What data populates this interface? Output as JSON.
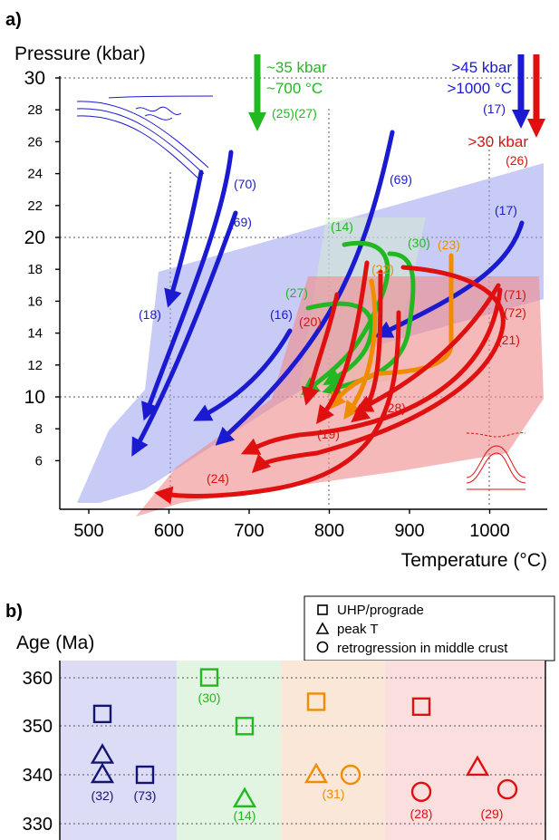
{
  "panel_a": {
    "label": "a)",
    "ylabel": "Pressure (kbar)",
    "xlabel": "Temperature (°C)",
    "x_ticks": [
      "500",
      "600",
      "700",
      "800",
      "900",
      "1000"
    ],
    "y_ticks": [
      "30",
      "28",
      "26",
      "24",
      "22",
      "20",
      "18",
      "16",
      "14",
      "12",
      "10",
      "8",
      "6"
    ],
    "annotations": {
      "green_line1": "~35 kbar",
      "green_line2": "~700 °C",
      "green_refs": "(25)(27)",
      "blue_line1": ">45 kbar",
      "blue_line2": ">1000 °C",
      "blue_ref": "(17)",
      "red_line1": ">30 kbar",
      "red_ref": "(26)"
    },
    "path_labels": [
      {
        "text": "(70)",
        "color": "#1a1ad0"
      },
      {
        "text": "(69)",
        "color": "#1a1ad0"
      },
      {
        "text": "(69)",
        "color": "#1a1ad0"
      },
      {
        "text": "(17)",
        "color": "#1a1ad0"
      },
      {
        "text": "(18)",
        "color": "#1a1ad0"
      },
      {
        "text": "(16)",
        "color": "#1a1ad0"
      },
      {
        "text": "(14)",
        "color": "#22b822"
      },
      {
        "text": "(30)",
        "color": "#22b822"
      },
      {
        "text": "(27)",
        "color": "#22b822"
      },
      {
        "text": "(23)",
        "color": "#f08c00"
      },
      {
        "text": "(22)",
        "color": "#f08c00"
      },
      {
        "text": "(20)",
        "color": "#e01010"
      },
      {
        "text": "(71)",
        "color": "#e01010"
      },
      {
        "text": "(72)",
        "color": "#e01010"
      },
      {
        "text": "(21)",
        "color": "#e01010"
      },
      {
        "text": "(28)",
        "color": "#e01010"
      },
      {
        "text": "(19)",
        "color": "#e01010"
      },
      {
        "text": "(24)",
        "color": "#e01010"
      }
    ]
  },
  "panel_b": {
    "label": "b)",
    "ylabel": "Age (Ma)",
    "legend": [
      {
        "shape": "square",
        "label": "UHP/prograde"
      },
      {
        "shape": "triangle",
        "label": "peak T"
      },
      {
        "shape": "circle",
        "label": "retrogression in middle crust"
      }
    ],
    "y_ticks": [
      "360",
      "350",
      "340",
      "330"
    ],
    "ref_labels": [
      "(32)",
      "(73)",
      "(30)",
      "(14)",
      "(31)",
      "(28)",
      "(29)"
    ]
  },
  "colors": {
    "blue": "#1a1ad0",
    "navy": "#141473",
    "green": "#22b822",
    "orange": "#f08c00",
    "red": "#e01010",
    "blue_band": "#9aa0ec",
    "red_band": "#f08a8a",
    "green_band": "#e2f4e2",
    "orange_band": "#fbe7d7",
    "red_bg_band": "#fbdede",
    "blue_bg_band": "#dcdcf6"
  },
  "chart_data": [
    {
      "type": "line",
      "title": "",
      "xlabel": "Temperature (°C)",
      "ylabel": "Pressure (kbar)",
      "xlim": [
        460,
        1080
      ],
      "ylim": [
        3,
        31
      ],
      "grid": "dashed at 600, 800, 1000 °C and 10, 20, 30 kbar",
      "series": [
        {
          "name": "(70)",
          "color": "blue",
          "x": [
            680,
            640,
            600
          ],
          "y": [
            25.5,
            18,
            10
          ]
        },
        {
          "name": "(70)",
          "color": "blue",
          "x": [
            660,
            625,
            590
          ],
          "y": [
            25,
            19,
            13
          ]
        },
        {
          "name": "(69)",
          "color": "blue",
          "x": [
            680,
            630,
            550
          ],
          "y": [
            20,
            12,
            6.5
          ]
        },
        {
          "name": "(69)",
          "color": "blue",
          "x": [
            875,
            820,
            680
          ],
          "y": [
            26.5,
            14,
            5.5
          ]
        },
        {
          "name": "(18)",
          "color": "blue",
          "x": [
            630,
            615,
            600
          ],
          "y": [
            23.5,
            19,
            15
          ]
        },
        {
          "name": "(16)",
          "color": "blue",
          "x": [
            740,
            710,
            640
          ],
          "y": [
            15.5,
            11,
            8.5
          ]
        },
        {
          "name": "(17)",
          "color": "blue",
          "x": [
            1040,
            980,
            880
          ],
          "y": [
            21,
            16,
            14
          ]
        },
        {
          "name": "(14)",
          "color": "green",
          "x": [
            820,
            810,
            780
          ],
          "y": [
            19.5,
            12,
            9.5
          ]
        },
        {
          "name": "(30)",
          "color": "green",
          "x": [
            870,
            860,
            800
          ],
          "y": [
            19,
            13,
            10
          ]
        },
        {
          "name": "(27)",
          "color": "green",
          "x": [
            775,
            820,
            780
          ],
          "y": [
            15.5,
            14,
            11
          ]
        },
        {
          "name": "(23)",
          "color": "orange",
          "x": [
            950,
            930,
            830
          ],
          "y": [
            19,
            12,
            9
          ]
        },
        {
          "name": "(22)",
          "color": "orange",
          "x": [
            860,
            840,
            810
          ],
          "y": [
            17.5,
            12,
            9
          ]
        },
        {
          "name": "(20)",
          "color": "red",
          "x": [
            815,
            790,
            780
          ],
          "y": [
            15.5,
            12,
            9.5
          ]
        },
        {
          "name": "(71)",
          "color": "red",
          "x": [
            1000,
            930,
            810
          ],
          "y": [
            17,
            10,
            6
          ]
        },
        {
          "name": "(72)",
          "color": "red",
          "x": [
            1000,
            920,
            700
          ],
          "y": [
            16,
            9,
            4
          ]
        },
        {
          "name": "(21)",
          "color": "red",
          "x": [
            1000,
            920,
            720
          ],
          "y": [
            14,
            8,
            5.5
          ]
        },
        {
          "name": "(28)",
          "color": "red",
          "x": [
            860,
            840,
            780
          ],
          "y": [
            18,
            10,
            9
          ]
        },
        {
          "name": "(19)",
          "color": "red",
          "x": [
            850,
            830,
            760
          ],
          "y": [
            18.5,
            10,
            7.5
          ]
        },
        {
          "name": "(24)",
          "color": "red",
          "x": [
            870,
            800,
            650
          ],
          "y": [
            18.5,
            7,
            4.5
          ]
        }
      ],
      "annotations": [
        {
          "text": "~35 kbar",
          "color": "green"
        },
        {
          "text": "~700 °C",
          "color": "green"
        },
        {
          "text": "(25)(27)",
          "color": "green"
        },
        {
          "text": ">45 kbar",
          "color": "blue"
        },
        {
          "text": ">1000 °C",
          "color": "blue"
        },
        {
          "text": "(17)",
          "color": "blue"
        },
        {
          "text": ">30 kbar",
          "color": "red"
        },
        {
          "text": "(26)",
          "color": "red"
        }
      ]
    },
    {
      "type": "scatter",
      "title": "",
      "xlabel": "",
      "ylabel": "Age (Ma)",
      "ylim": [
        327,
        365
      ],
      "legend_position": "top-right",
      "series": [
        {
          "name": "UHP/prograde",
          "marker": "square",
          "points": [
            {
              "group": "blue",
              "ref": "(32)",
              "age": 352.5
            },
            {
              "group": "blue",
              "ref": "(73)",
              "age": 340
            },
            {
              "group": "green",
              "ref": "(30)",
              "age": 360
            },
            {
              "group": "green",
              "ref": "",
              "age": 350
            },
            {
              "group": "orange",
              "ref": "",
              "age": 355
            },
            {
              "group": "red",
              "ref": "",
              "age": 354
            }
          ]
        },
        {
          "name": "peak T",
          "marker": "triangle",
          "points": [
            {
              "group": "blue",
              "ref": "(32)",
              "age": 344
            },
            {
              "group": "blue",
              "ref": "(32)",
              "age": 340
            },
            {
              "group": "green",
              "ref": "(14)",
              "age": 335
            },
            {
              "group": "orange",
              "ref": "(31)",
              "age": 340
            },
            {
              "group": "red",
              "ref": "(29)",
              "age": 341.5
            }
          ]
        },
        {
          "name": "retrogression in middle crust",
          "marker": "circle",
          "points": [
            {
              "group": "orange",
              "ref": "(31)",
              "age": 340
            },
            {
              "group": "red",
              "ref": "(28)",
              "age": 336.5
            },
            {
              "group": "red",
              "ref": "(29)",
              "age": 337
            }
          ]
        }
      ]
    }
  ]
}
